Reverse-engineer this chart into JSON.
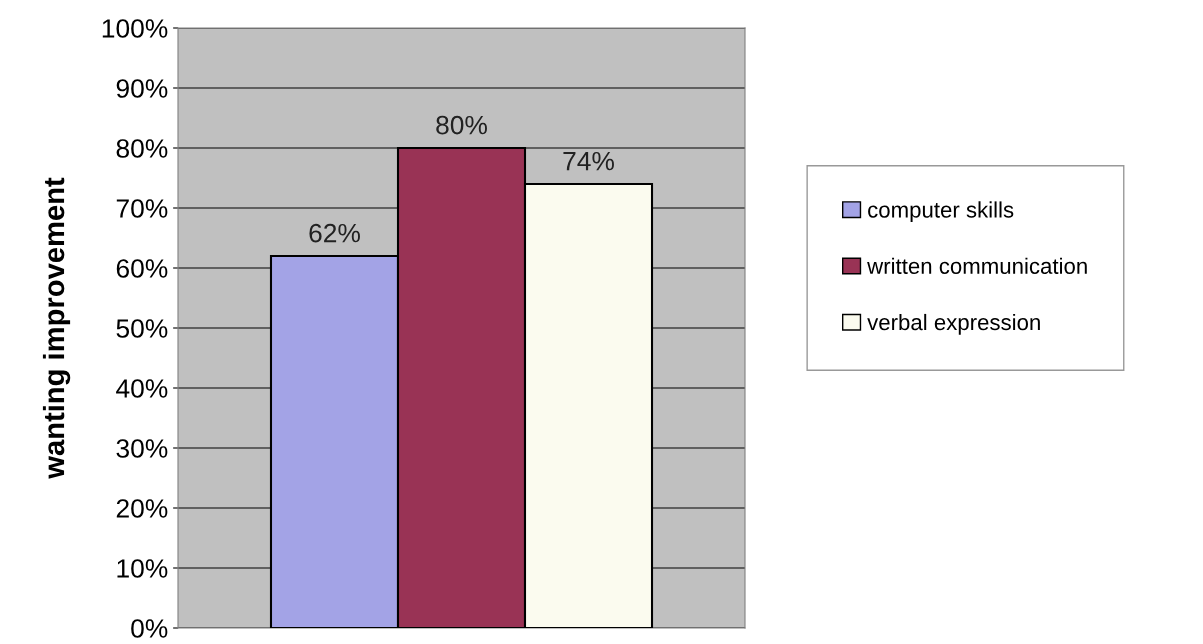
{
  "chart_data": {
    "type": "bar",
    "ylabel": "wanting improvement",
    "categories": [
      null
    ],
    "series": [
      {
        "name": "computer skills",
        "color": "#a3a3e6",
        "values": [
          62
        ],
        "value_labels": [
          "62%"
        ]
      },
      {
        "name": "written communication",
        "color": "#993355",
        "values": [
          80
        ],
        "value_labels": [
          "80%"
        ]
      },
      {
        "name": "verbal expression",
        "color": "#fbfbef",
        "values": [
          74
        ],
        "value_labels": [
          "74%"
        ]
      }
    ],
    "ylim": [
      0,
      100
    ],
    "yticks": [
      {
        "value": 0,
        "label": "0%"
      },
      {
        "value": 10,
        "label": "10%"
      },
      {
        "value": 20,
        "label": "20%"
      },
      {
        "value": 30,
        "label": "30%"
      },
      {
        "value": 40,
        "label": "40%"
      },
      {
        "value": 50,
        "label": "50%"
      },
      {
        "value": 60,
        "label": "60%"
      },
      {
        "value": 70,
        "label": "70%"
      },
      {
        "value": 80,
        "label": "80%"
      },
      {
        "value": 90,
        "label": "90%"
      },
      {
        "value": 100,
        "label": "100%"
      }
    ],
    "grid": "y",
    "legend": "right"
  }
}
